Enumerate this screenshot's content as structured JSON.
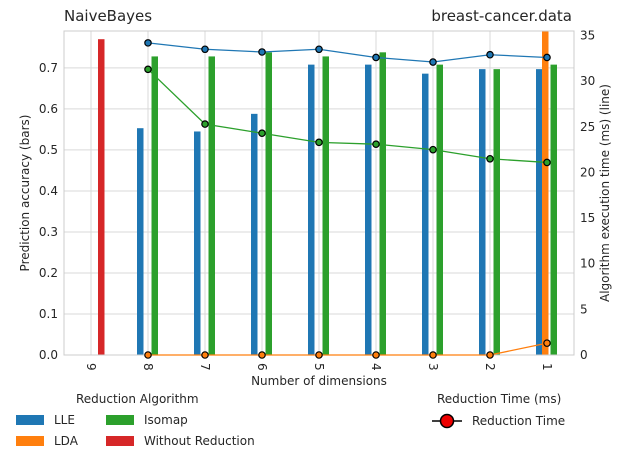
{
  "titles": {
    "left": "NaiveBayes",
    "right": "breast-cancer.data"
  },
  "legend": {
    "algorithm_title": "Reduction Algorithm",
    "time_title": "Reduction Time (ms)",
    "time_label": "Reduction Time"
  },
  "chart_data": {
    "type": "bar",
    "xlabel": "Number of dimensions",
    "ylabel": "Prediction accuracy (bars)",
    "y2label": "Algorithm execution time (ms) (line)",
    "categories": [
      "9",
      "8",
      "7",
      "6",
      "5",
      "4",
      "3",
      "2",
      "1"
    ],
    "ylim": [
      0,
      0.79
    ],
    "y2lim": [
      0,
      35.5
    ],
    "yticks": [
      "0.0",
      "0.1",
      "0.2",
      "0.3",
      "0.4",
      "0.5",
      "0.6",
      "0.7"
    ],
    "y2ticks": [
      "0",
      "5",
      "10",
      "15",
      "20",
      "25",
      "30",
      "35"
    ],
    "grid": true,
    "series": [
      {
        "name": "LLE",
        "color": "#1f77b4",
        "values": [
          null,
          0.553,
          0.545,
          0.588,
          0.708,
          0.708,
          0.686,
          0.697,
          0.697
        ]
      },
      {
        "name": "LDA",
        "color": "#ff7f0e",
        "values": [
          null,
          null,
          null,
          null,
          null,
          null,
          null,
          null,
          0.79
        ]
      },
      {
        "name": "Isomap",
        "color": "#2ca02c",
        "values": [
          null,
          0.728,
          0.728,
          0.738,
          0.728,
          0.738,
          0.708,
          0.697,
          0.708
        ]
      },
      {
        "name": "Without Reduction",
        "color": "#d62728",
        "values": [
          0.77,
          null,
          null,
          null,
          null,
          null,
          null,
          null,
          null
        ]
      }
    ],
    "time_lines": [
      {
        "name": "LLE",
        "color": "#1f77b4",
        "values": [
          null,
          34.2,
          33.5,
          33.2,
          33.5,
          32.6,
          32.1,
          32.9,
          32.6
        ]
      },
      {
        "name": "LDA",
        "color": "#ff7f0e",
        "values": [
          null,
          0.0,
          0.0,
          0.0,
          0.0,
          0.0,
          0.0,
          0.0,
          1.3
        ]
      },
      {
        "name": "Isomap",
        "color": "#2ca02c",
        "values": [
          null,
          31.3,
          25.3,
          24.3,
          23.3,
          23.1,
          22.5,
          21.5,
          21.1
        ]
      }
    ]
  }
}
